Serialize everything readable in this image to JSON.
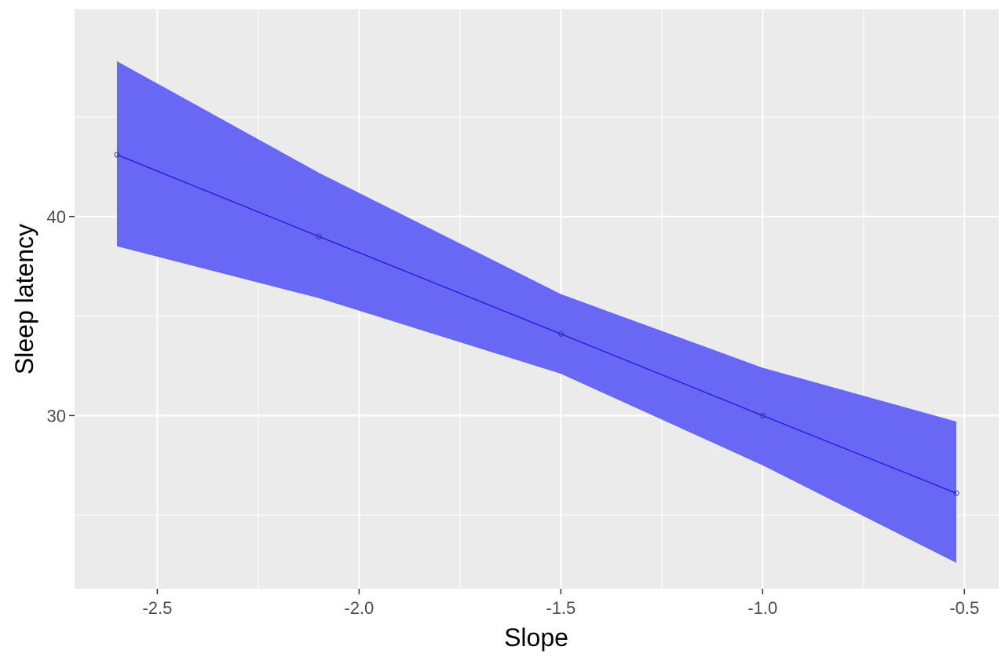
{
  "chart_data": {
    "type": "line",
    "xlabel": "Slope",
    "ylabel": "Sleep latency",
    "xlim": [
      -2.705,
      -0.415
    ],
    "ylim": [
      21.3,
      50.4
    ],
    "x_ticks_major": [
      -2.5,
      -2.0,
      -1.5,
      -1.0,
      -0.5
    ],
    "x_ticks_minor": [
      -2.25,
      -1.75,
      -1.25,
      -0.75
    ],
    "x_tick_labels": [
      "-2.5",
      "-2.0",
      "-1.5",
      "-1.0",
      "-0.5"
    ],
    "y_ticks_major": [
      30,
      40
    ],
    "y_ticks_minor": [
      25,
      35,
      45
    ],
    "y_tick_labels": [
      "30",
      "40"
    ],
    "grid": true,
    "colors": {
      "panel_background": "#ebebeb",
      "grid": "#ffffff",
      "band": "#6868f5",
      "line": "#1a1ae0",
      "point": "#3333aa"
    },
    "series": [
      {
        "x": [
          -2.6,
          -2.1,
          -1.5,
          -1.0,
          -0.52
        ],
        "y": [
          43.1,
          39.0,
          34.1,
          30.0,
          26.1
        ],
        "lower": [
          38.5,
          35.9,
          32.1,
          27.5,
          22.6
        ],
        "upper": [
          47.8,
          42.2,
          36.1,
          32.4,
          29.7
        ]
      }
    ]
  }
}
